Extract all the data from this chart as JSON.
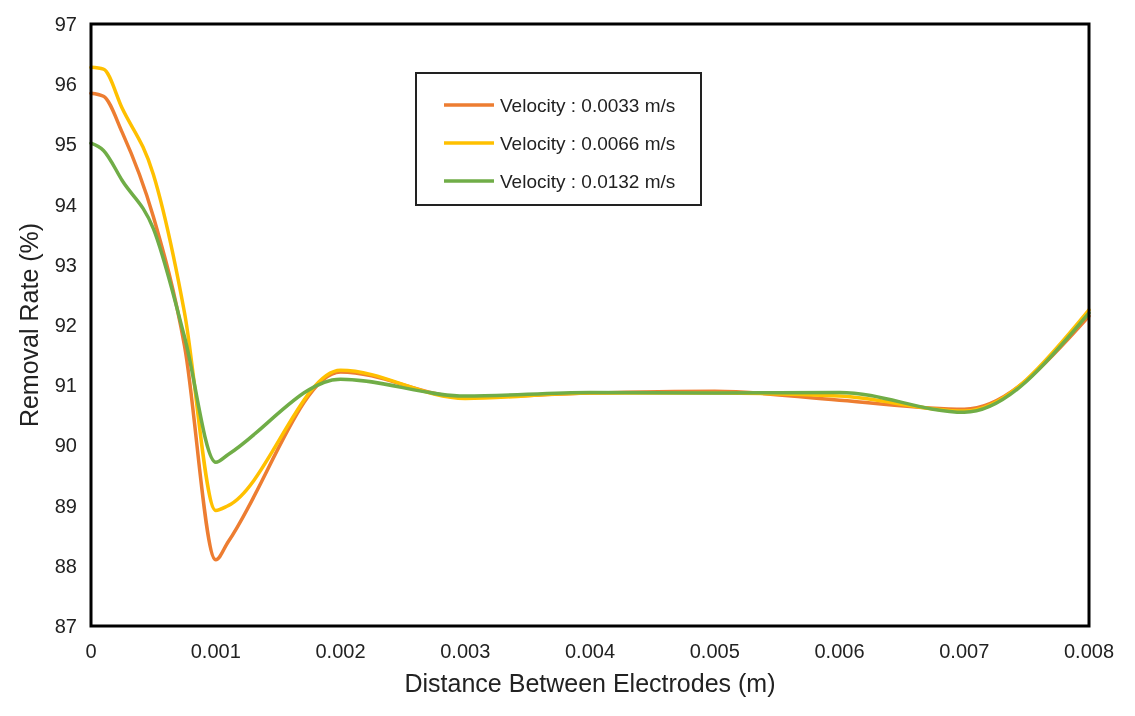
{
  "chart_data": {
    "type": "line",
    "xlabel": "Distance Between Electrodes (m)",
    "ylabel": "Removal Rate (%)",
    "xlim": [
      0,
      0.008
    ],
    "xticks": [
      0,
      0.001,
      0.002,
      0.003,
      0.004,
      0.005,
      0.006,
      0.007,
      0.008
    ],
    "ylim": [
      87,
      97
    ],
    "yticks": [
      87,
      88,
      89,
      90,
      91,
      92,
      93,
      94,
      95,
      96,
      97
    ],
    "x": [
      0,
      0.0001,
      0.00025,
      0.0005,
      0.00075,
      0.001,
      0.0011,
      0.002,
      0.003,
      0.004,
      0.005,
      0.006,
      0.007,
      0.008
    ],
    "series": [
      {
        "name": "Velocity : 0.0033 m/s",
        "color": "#ed7d31",
        "values": [
          95.85,
          95.8,
          95.2,
          93.8,
          91.65,
          88.1,
          88.4,
          91.22,
          90.8,
          90.87,
          90.9,
          90.75,
          90.6,
          92.15
        ]
      },
      {
        "name": "Velocity : 0.0066 m/s",
        "color": "#ffc000",
        "values": [
          96.28,
          96.25,
          95.6,
          94.5,
          92.2,
          88.92,
          89.0,
          91.25,
          90.78,
          90.87,
          90.87,
          90.82,
          90.57,
          92.25
        ]
      },
      {
        "name": "Velocity : 0.0132 m/s",
        "color": "#70ad47",
        "values": [
          95.02,
          94.9,
          94.4,
          93.6,
          91.8,
          89.72,
          89.85,
          91.1,
          90.82,
          90.88,
          90.87,
          90.88,
          90.55,
          92.2
        ]
      }
    ],
    "legend": "top",
    "grid": false,
    "marker": "none",
    "line_style": "solid"
  }
}
